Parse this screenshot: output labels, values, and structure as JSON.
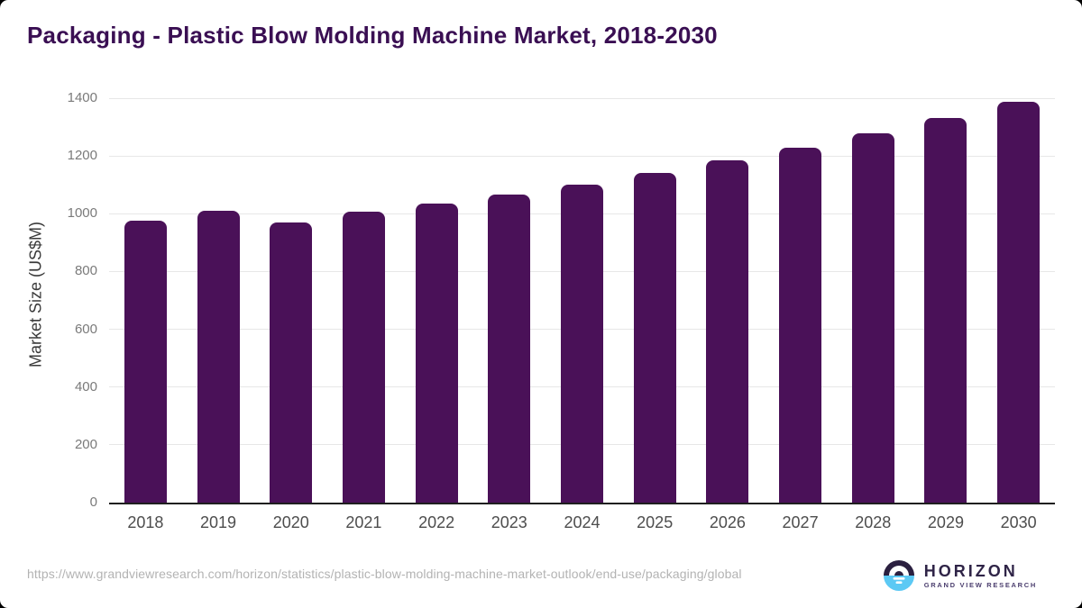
{
  "page": {
    "title": "Packaging - Plastic Blow Molding Machine Market, 2018-2030",
    "source_url": "https://www.grandviewresearch.com/horizon/statistics/plastic-blow-molding-machine-market-outlook/end-use/packaging/global",
    "logo": {
      "brand": "HORIZON",
      "tagline": "GRAND VIEW RESEARCH"
    }
  },
  "chart_data": {
    "type": "bar",
    "title": "Packaging - Plastic Blow Molding Machine Market, 2018-2030",
    "categories": [
      "2018",
      "2019",
      "2020",
      "2021",
      "2022",
      "2023",
      "2024",
      "2025",
      "2026",
      "2027",
      "2028",
      "2029",
      "2030"
    ],
    "values": [
      975,
      1010,
      971,
      1006,
      1034,
      1067,
      1100,
      1140,
      1185,
      1228,
      1278,
      1330,
      1388
    ],
    "xlabel": "",
    "ylabel": "Market Size (US$M)",
    "ylim": [
      0,
      1400
    ],
    "ytick_step": 200,
    "grid": true,
    "legend": false,
    "bar_color": "#4A1158",
    "gridline_color": "#E7E7E7",
    "axis_line_color": "#1F1F1F",
    "tick_label_color": "#7A7A7A",
    "x_label_color": "#4D4D4D",
    "title_color": "#3A0F53"
  },
  "colors": {
    "background": "#FFFFFF",
    "url_text": "#B3B3B3",
    "logo_dark": "#2B2040",
    "logo_blue": "#5CC9F4",
    "logo_text": "#2F2447",
    "logo_tagline": "#4B3E6E"
  }
}
